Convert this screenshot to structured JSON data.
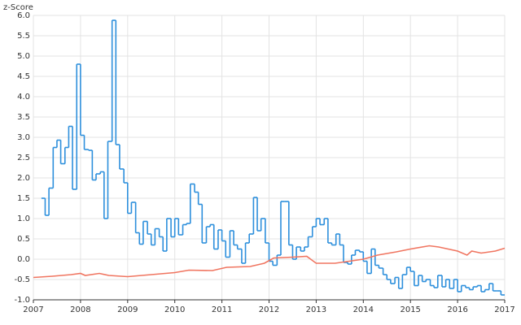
{
  "chart_data": {
    "type": "step-line",
    "y_label": "z-Score",
    "xlim": [
      2007,
      2017
    ],
    "xticks": [
      2007,
      2008,
      2009,
      2010,
      2011,
      2012,
      2013,
      2014,
      2015,
      2016,
      2017
    ],
    "ylim": [
      -1.0,
      6.0
    ],
    "yticks": [
      {
        "value": -1.0,
        "label": "-1.0"
      },
      -0.5,
      {
        "value": 0.0,
        "label": "0.0"
      },
      0.5,
      {
        "value": 1.0,
        "label": "1.0"
      },
      1.5,
      {
        "value": 2.0,
        "label": "2.0"
      },
      2.5,
      {
        "value": 3.0,
        "label": "3.0"
      },
      3.5,
      {
        "value": 4.0,
        "label": "4.0"
      },
      4.5,
      {
        "value": 5.0,
        "label": "5.0"
      },
      5.5,
      {
        "value": 6.0,
        "label": "6.0"
      }
    ],
    "grid": true,
    "series": [
      {
        "color": "#2d8fdc",
        "step": true,
        "x": [
          2007.17,
          2007.25,
          2007.33,
          2007.42,
          2007.5,
          2007.58,
          2007.67,
          2007.75,
          2007.83,
          2007.92,
          2008.0,
          2008.08,
          2008.17,
          2008.25,
          2008.33,
          2008.42,
          2008.5,
          2008.58,
          2008.67,
          2008.75,
          2008.83,
          2008.92,
          2009.0,
          2009.08,
          2009.17,
          2009.25,
          2009.33,
          2009.42,
          2009.5,
          2009.58,
          2009.67,
          2009.75,
          2009.83,
          2009.92,
          2010.0,
          2010.08,
          2010.17,
          2010.25,
          2010.33,
          2010.42,
          2010.5,
          2010.58,
          2010.67,
          2010.75,
          2010.83,
          2010.92,
          2011.0,
          2011.08,
          2011.17,
          2011.25,
          2011.33,
          2011.42,
          2011.5,
          2011.58,
          2011.67,
          2011.75,
          2011.83,
          2011.92,
          2012.0,
          2012.08,
          2012.17,
          2012.25,
          2012.33,
          2012.42,
          2012.5,
          2012.58,
          2012.67,
          2012.75,
          2012.83,
          2012.92,
          2013.0,
          2013.08,
          2013.17,
          2013.25,
          2013.33,
          2013.42,
          2013.5,
          2013.58,
          2013.67,
          2013.75,
          2013.83,
          2013.92,
          2014.0,
          2014.08,
          2014.17,
          2014.25,
          2014.33,
          2014.42,
          2014.5,
          2014.58,
          2014.67,
          2014.75,
          2014.83,
          2014.92,
          2015.0,
          2015.08,
          2015.17,
          2015.25,
          2015.33,
          2015.42,
          2015.5,
          2015.58,
          2015.67,
          2015.75,
          2015.83,
          2015.92,
          2016.0,
          2016.08,
          2016.17,
          2016.25,
          2016.33,
          2016.42,
          2016.5,
          2016.58,
          2016.67,
          2016.75,
          2016.83,
          2016.92
        ],
        "values": [
          1.5,
          1.08,
          1.75,
          2.75,
          2.93,
          2.35,
          2.75,
          3.27,
          1.72,
          4.8,
          3.05,
          2.7,
          2.68,
          1.95,
          2.1,
          2.15,
          1.0,
          2.9,
          5.88,
          2.82,
          2.22,
          1.88,
          1.13,
          1.4,
          0.65,
          0.37,
          0.93,
          0.62,
          0.35,
          0.75,
          0.55,
          0.2,
          1.0,
          0.55,
          1.0,
          0.6,
          0.85,
          0.88,
          1.85,
          1.65,
          1.35,
          0.4,
          0.8,
          0.85,
          0.25,
          0.72,
          0.45,
          0.05,
          0.7,
          0.35,
          0.25,
          -0.1,
          0.4,
          0.62,
          1.52,
          0.7,
          1.0,
          0.4,
          -0.05,
          -0.15,
          0.1,
          1.42,
          1.42,
          0.35,
          0.0,
          0.3,
          0.2,
          0.3,
          0.55,
          0.8,
          1.0,
          0.85,
          1.0,
          0.4,
          0.35,
          0.62,
          0.35,
          -0.08,
          -0.12,
          0.1,
          0.22,
          0.18,
          -0.05,
          -0.35,
          0.25,
          -0.15,
          -0.22,
          -0.38,
          -0.5,
          -0.6,
          -0.45,
          -0.72,
          -0.38,
          -0.2,
          -0.3,
          -0.65,
          -0.4,
          -0.55,
          -0.5,
          -0.65,
          -0.7,
          -0.4,
          -0.68,
          -0.5,
          -0.72,
          -0.5,
          -0.8,
          -0.65,
          -0.7,
          -0.75,
          -0.68,
          -0.65,
          -0.8,
          -0.75,
          -0.6,
          -0.78,
          -0.78,
          -0.88
        ]
      },
      {
        "color": "#f07560",
        "step": false,
        "x": [
          2007.0,
          2007.4,
          2007.8,
          2008.0,
          2008.1,
          2008.4,
          2008.6,
          2009.0,
          2009.5,
          2010.0,
          2010.3,
          2010.8,
          2011.1,
          2011.6,
          2011.9,
          2012.1,
          2012.5,
          2012.8,
          2013.0,
          2013.4,
          2013.7,
          2014.0,
          2014.3,
          2014.7,
          2015.0,
          2015.4,
          2015.6,
          2016.0,
          2016.2,
          2016.3,
          2016.5,
          2016.8,
          2017.0
        ],
        "values": [
          -0.45,
          -0.42,
          -0.38,
          -0.35,
          -0.4,
          -0.35,
          -0.4,
          -0.43,
          -0.38,
          -0.33,
          -0.27,
          -0.28,
          -0.2,
          -0.18,
          -0.1,
          0.03,
          0.05,
          0.07,
          -0.1,
          -0.1,
          -0.05,
          0.0,
          0.1,
          0.18,
          0.25,
          0.33,
          0.3,
          0.2,
          0.1,
          0.2,
          0.15,
          0.2,
          0.27
        ]
      }
    ]
  }
}
